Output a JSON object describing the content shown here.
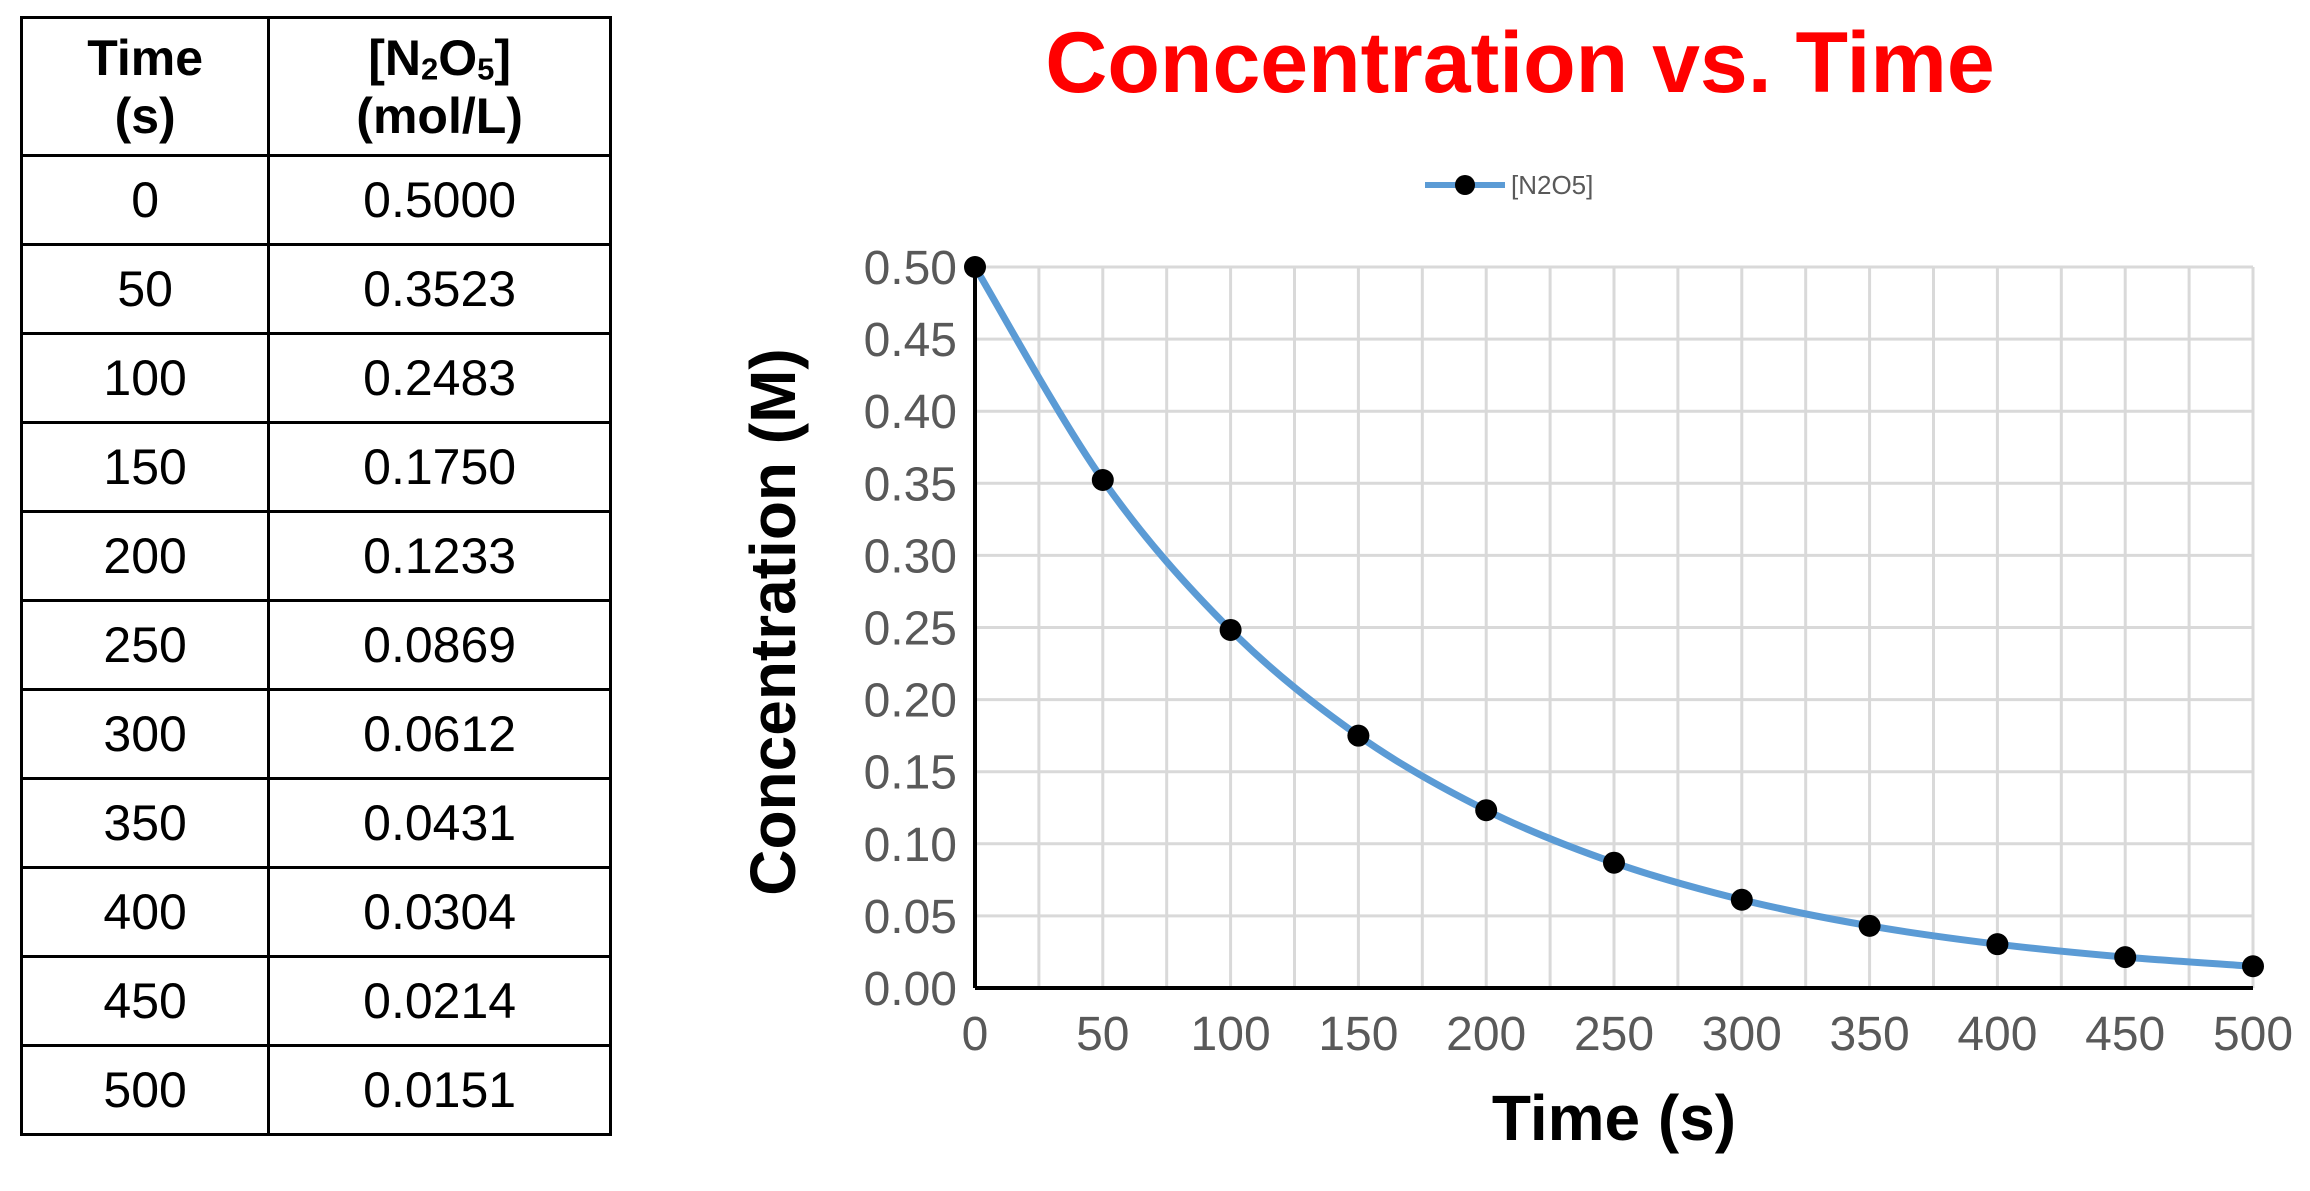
{
  "table": {
    "headers": {
      "time": [
        "Time",
        "(s)"
      ],
      "conc_prefix": "[N",
      "conc_sub1": "2",
      "conc_mid": "O",
      "conc_sub2": "5",
      "conc_suffix": "]",
      "conc_unit": "(mol/L)"
    },
    "rows": [
      {
        "time": "0",
        "conc": "0.5000"
      },
      {
        "time": "50",
        "conc": "0.3523"
      },
      {
        "time": "100",
        "conc": "0.2483"
      },
      {
        "time": "150",
        "conc": "0.1750"
      },
      {
        "time": "200",
        "conc": "0.1233"
      },
      {
        "time": "250",
        "conc": "0.0869"
      },
      {
        "time": "300",
        "conc": "0.0612"
      },
      {
        "time": "350",
        "conc": "0.0431"
      },
      {
        "time": "400",
        "conc": "0.0304"
      },
      {
        "time": "450",
        "conc": "0.0214"
      },
      {
        "time": "500",
        "conc": "0.0151"
      }
    ]
  },
  "chart_data": {
    "type": "line",
    "title": "Concentration vs. Time",
    "xlabel": "Time (s)",
    "ylabel": "Concentration (M)",
    "xlim": [
      0,
      500
    ],
    "ylim": [
      0,
      0.5
    ],
    "x_ticks": [
      "0",
      "50",
      "100",
      "150",
      "200",
      "250",
      "300",
      "350",
      "400",
      "450",
      "500"
    ],
    "y_ticks": [
      "0.00",
      "0.05",
      "0.10",
      "0.15",
      "0.20",
      "0.25",
      "0.30",
      "0.35",
      "0.40",
      "0.45",
      "0.50"
    ],
    "grid": true,
    "legend": "top-center",
    "series": [
      {
        "name": "[N2O5]",
        "color": "#5b9bd5",
        "marker_color": "#000000",
        "x": [
          0,
          50,
          100,
          150,
          200,
          250,
          300,
          350,
          400,
          450,
          500
        ],
        "y": [
          0.5,
          0.3523,
          0.2483,
          0.175,
          0.1233,
          0.0869,
          0.0612,
          0.0431,
          0.0304,
          0.0214,
          0.0151
        ]
      }
    ]
  },
  "colors": {
    "title": "#ff0000",
    "line": "#5b9bd5",
    "grid": "#d9d9d9",
    "tick_text": "#595959"
  }
}
